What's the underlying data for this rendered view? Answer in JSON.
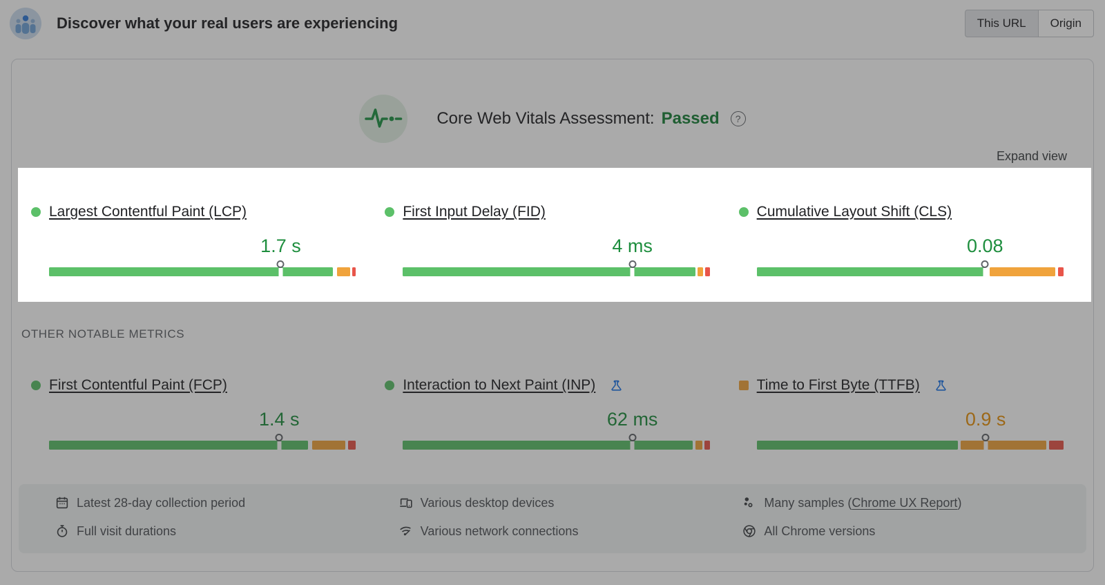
{
  "header": {
    "title": "Discover what your real users are experiencing",
    "toggle": {
      "this_url": "This URL",
      "origin": "Origin",
      "selected": "This URL"
    }
  },
  "assessment": {
    "label": "Core Web Vitals Assessment:",
    "status": "Passed",
    "help": "?"
  },
  "expand_view": "Expand view",
  "core_metrics": [
    {
      "id": "lcp",
      "label": "Largest Contentful Paint (LCP)",
      "value": "1.7 s",
      "status": "good",
      "bullet": "circle",
      "experimental": false,
      "marker": 0.755,
      "segments": [
        {
          "color": "good",
          "from": 0,
          "to": 0.924
        },
        {
          "color": "ni",
          "from": 0.939,
          "to": 0.982
        },
        {
          "color": "poor",
          "from": 0.989,
          "to": 1
        }
      ]
    },
    {
      "id": "fid",
      "label": "First Input Delay (FID)",
      "value": "4 ms",
      "status": "good",
      "bullet": "circle",
      "experimental": false,
      "marker": 0.748,
      "segments": [
        {
          "color": "good",
          "from": 0,
          "to": 0.953
        },
        {
          "color": "ni",
          "from": 0.96,
          "to": 0.978
        },
        {
          "color": "poor",
          "from": 0.985,
          "to": 1
        }
      ]
    },
    {
      "id": "cls",
      "label": "Cumulative Layout Shift (CLS)",
      "value": "0.08",
      "status": "good",
      "bullet": "circle",
      "experimental": false,
      "marker": 0.744,
      "segments": [
        {
          "color": "good",
          "from": 0,
          "to": 0.746
        },
        {
          "color": "ni",
          "from": 0.76,
          "to": 0.973
        },
        {
          "color": "poor",
          "from": 0.982,
          "to": 1
        }
      ]
    }
  ],
  "other_metrics_label": "OTHER NOTABLE METRICS",
  "other_metrics": [
    {
      "id": "fcp",
      "label": "First Contentful Paint (FCP)",
      "value": "1.4 s",
      "status": "good",
      "bullet": "circle",
      "experimental": false,
      "marker": 0.75,
      "segments": [
        {
          "color": "good",
          "from": 0,
          "to": 0.845
        },
        {
          "color": "ni",
          "from": 0.858,
          "to": 0.966
        },
        {
          "color": "poor",
          "from": 0.975,
          "to": 1
        }
      ]
    },
    {
      "id": "inp",
      "label": "Interaction to Next Paint (INP)",
      "value": "62 ms",
      "status": "good",
      "bullet": "circle",
      "experimental": true,
      "marker": 0.748,
      "segments": [
        {
          "color": "good",
          "from": 0,
          "to": 0.945
        },
        {
          "color": "ni",
          "from": 0.954,
          "to": 0.976
        },
        {
          "color": "poor",
          "from": 0.983,
          "to": 1
        }
      ]
    },
    {
      "id": "ttfb",
      "label": "Time to First Byte (TTFB)",
      "value": "0.9 s",
      "status": "average",
      "bullet": "square",
      "experimental": true,
      "marker": 0.746,
      "segments": [
        {
          "color": "good",
          "from": 0,
          "to": 0.655
        },
        {
          "color": "ni",
          "from": 0.664,
          "to": 0.944
        },
        {
          "color": "poor",
          "from": 0.953,
          "to": 1
        }
      ]
    }
  ],
  "footer": {
    "columns": [
      {
        "rows": [
          {
            "icon": "calendar-icon",
            "text": "Latest 28-day collection period"
          },
          {
            "icon": "stopwatch-icon",
            "text": "Full visit durations"
          }
        ]
      },
      {
        "rows": [
          {
            "icon": "devices-icon",
            "text": "Various desktop devices"
          },
          {
            "icon": "network-icon",
            "text": "Various network connections"
          }
        ]
      },
      {
        "rows": [
          {
            "icon": "samples-icon",
            "text": "Many samples (",
            "link": "Chrome UX Report",
            "suffix": ")"
          },
          {
            "icon": "chrome-icon",
            "text": "All Chrome versions"
          }
        ]
      }
    ]
  },
  "colors": {
    "good": "#5cc069",
    "ni": "#f0a33c",
    "poor": "#e8554a",
    "good_text": "#1e8e3e",
    "average_text": "#e8910c",
    "passed": "#188038",
    "accent_blue": "#1a73e8",
    "logo_blue": "#2d79d8"
  }
}
